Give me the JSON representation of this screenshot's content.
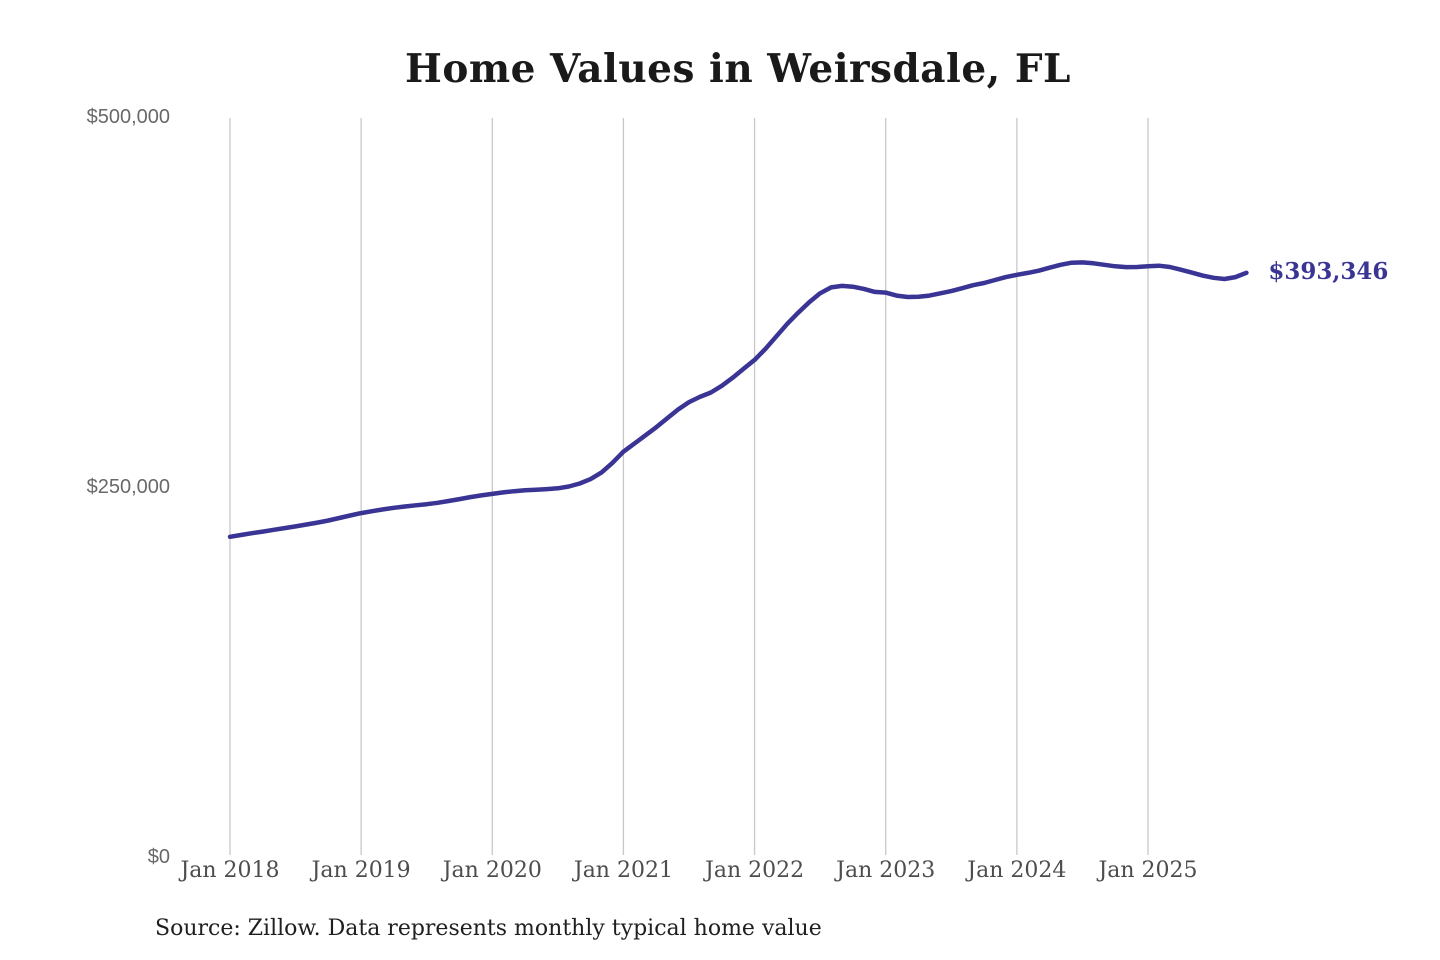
{
  "page": {
    "background": "#ffffff"
  },
  "chart": {
    "title": "Home Values in Weirsdale, FL",
    "source": "Source: Zillow. Data represents monthly typical home value",
    "end_label": "$393,346",
    "line_color": "#3a3594",
    "grid_color": "#c8c8c8"
  },
  "chart_data": {
    "type": "line",
    "title": "Home Values in Weirsdale, FL",
    "xlabel": "",
    "ylabel": "",
    "ylim": [
      0,
      500000
    ],
    "grid": "vertical-only",
    "legend": "none",
    "y_ticks": [
      {
        "value": 0,
        "label": "$0"
      },
      {
        "value": 250000,
        "label": "$250,000"
      },
      {
        "value": 500000,
        "label": "$500,000"
      }
    ],
    "x_ticks": [
      "Jan 2018",
      "Jan 2019",
      "Jan 2020",
      "Jan 2021",
      "Jan 2022",
      "Jan 2023",
      "Jan 2024",
      "Jan 2025"
    ],
    "annotation": {
      "text": "$393,346",
      "color": "#3a3594"
    },
    "series": [
      {
        "name": "Monthly typical home value",
        "months": [
          "Jan 2018",
          "Feb 2018",
          "Mar 2018",
          "Apr 2018",
          "May 2018",
          "Jun 2018",
          "Jul 2018",
          "Aug 2018",
          "Sep 2018",
          "Oct 2018",
          "Nov 2018",
          "Dec 2018",
          "Jan 2019",
          "Feb 2019",
          "Mar 2019",
          "Apr 2019",
          "May 2019",
          "Jun 2019",
          "Jul 2019",
          "Aug 2019",
          "Sep 2019",
          "Oct 2019",
          "Nov 2019",
          "Dec 2019",
          "Jan 2020",
          "Feb 2020",
          "Mar 2020",
          "Apr 2020",
          "May 2020",
          "Jun 2020",
          "Jul 2020",
          "Aug 2020",
          "Sep 2020",
          "Oct 2020",
          "Nov 2020",
          "Dec 2020",
          "Jan 2021",
          "Feb 2021",
          "Mar 2021",
          "Apr 2021",
          "May 2021",
          "Jun 2021",
          "Jul 2021",
          "Aug 2021",
          "Sep 2021",
          "Oct 2021",
          "Nov 2021",
          "Dec 2021",
          "Jan 2022",
          "Feb 2022",
          "Mar 2022",
          "Apr 2022",
          "May 2022",
          "Jun 2022",
          "Jul 2022",
          "Aug 2022",
          "Sep 2022",
          "Oct 2022",
          "Nov 2022",
          "Dec 2022",
          "Jan 2023",
          "Feb 2023",
          "Mar 2023",
          "Apr 2023",
          "May 2023",
          "Jun 2023",
          "Jul 2023",
          "Aug 2023",
          "Sep 2023",
          "Oct 2023",
          "Nov 2023",
          "Dec 2023",
          "Jan 2024",
          "Feb 2024",
          "Mar 2024",
          "Apr 2024",
          "May 2024",
          "Jun 2024",
          "Jul 2024",
          "Aug 2024",
          "Sep 2024",
          "Oct 2024",
          "Nov 2024",
          "Dec 2024",
          "Jan 2025",
          "Feb 2025",
          "Mar 2025",
          "Apr 2025",
          "May 2025",
          "Jun 2025",
          "Jul 2025",
          "Aug 2025",
          "Sep 2025",
          "Oct 2025"
        ],
        "values": [
          215000,
          216200,
          217400,
          218500,
          219700,
          220900,
          222000,
          223300,
          224600,
          226000,
          227700,
          229400,
          231000,
          232300,
          233500,
          234600,
          235500,
          236300,
          237000,
          238000,
          239200,
          240500,
          241800,
          243000,
          244000,
          245000,
          245800,
          246400,
          246800,
          247200,
          247800,
          249000,
          251000,
          254000,
          258500,
          265000,
          272500,
          278000,
          283500,
          289000,
          295000,
          301000,
          306000,
          309500,
          312500,
          317000,
          322500,
          328500,
          334500,
          342000,
          350500,
          359000,
          366500,
          373500,
          379500,
          383500,
          384500,
          384000,
          382500,
          380500,
          380000,
          378000,
          377000,
          377200,
          378000,
          379500,
          381000,
          383000,
          385000,
          386500,
          388500,
          390500,
          392000,
          393300,
          394800,
          396800,
          398800,
          400200,
          400400,
          399800,
          398800,
          397800,
          397200,
          397300,
          397800,
          398200,
          397300,
          395500,
          393500,
          391500,
          390000,
          389200,
          390500,
          393346
        ],
        "latest_value": 393346
      }
    ]
  }
}
